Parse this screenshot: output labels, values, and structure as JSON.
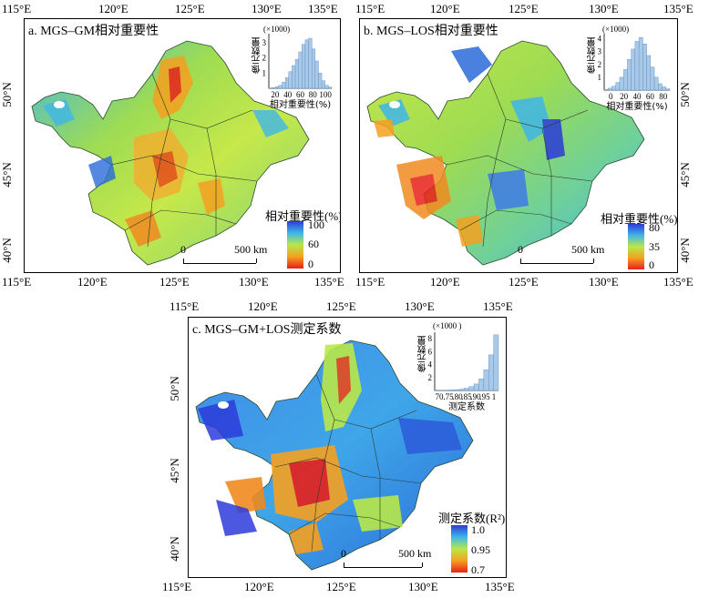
{
  "panels": {
    "a": {
      "title": "a. MGS–GM相对重要性",
      "x_ticks_top": [
        "115°E",
        "120°E",
        "125°E",
        "130°E",
        "135°E"
      ],
      "x_ticks_bottom": [
        "115°E",
        "120°E",
        "125°E",
        "130°E",
        "135°E"
      ],
      "y_ticks": [
        "50°N",
        "45°N",
        "40°N"
      ],
      "legend": {
        "title": "相对重要性(%)",
        "values": [
          "100",
          "60",
          "0"
        ]
      },
      "scale": {
        "left": "0",
        "right": "500 km"
      },
      "histogram": {
        "ylabel": "像元数量",
        "multiplier": "(×1000)",
        "y_ticks": [
          "1",
          "2",
          "3"
        ],
        "x_ticks": [
          "20",
          "40",
          "60",
          "80",
          "100"
        ],
        "xlabel": "相对重要性(%)",
        "bars": [
          0.02,
          0.05,
          0.1,
          0.2,
          0.4,
          0.7,
          1.1,
          1.5,
          1.9,
          2.4,
          2.9,
          3.2,
          3.3,
          2.6,
          1.8,
          1.0,
          0.5,
          0.2,
          0.08
        ],
        "xrange": [
          5,
          100
        ],
        "yrange": [
          0,
          3.6
        ],
        "bar_color": "#a9c9e8"
      }
    },
    "b": {
      "title": "b. MGS–LOS相对重要性",
      "x_ticks_top": [
        "115°E",
        "120°E",
        "125°E",
        "130°E",
        "135°E"
      ],
      "x_ticks_bottom": [
        "115°E",
        "120°E",
        "125°E",
        "130°E",
        "135°E"
      ],
      "y_ticks": [
        "50°N",
        "45°N",
        "40°N"
      ],
      "legend": {
        "title": "相对重要性(%)",
        "values": [
          "80",
          "35",
          "0"
        ]
      },
      "scale": {
        "left": "0",
        "right": "500 km"
      },
      "histogram": {
        "ylabel": "像元数量",
        "multiplier": "(×1000)",
        "y_ticks": [
          "1",
          "2",
          "3",
          "4"
        ],
        "x_ticks": [
          "0",
          "20",
          "40",
          "60",
          "80"
        ],
        "xlabel": "相对重要性(%)",
        "bars": [
          0.05,
          0.15,
          0.3,
          0.6,
          1.0,
          1.6,
          2.4,
          3.2,
          3.8,
          4.1,
          3.6,
          2.7,
          1.8,
          1.0,
          0.5,
          0.25,
          0.1
        ],
        "xrange": [
          0,
          80
        ],
        "yrange": [
          0,
          4.4
        ],
        "bar_color": "#a9c9e8"
      }
    },
    "c": {
      "title": "c. MGS–GM+LOS测定系数",
      "x_ticks_top": [
        "115°E",
        "120°E",
        "125°E",
        "130°E",
        "135°E"
      ],
      "x_ticks_bottom": [
        "115°E",
        "120°E",
        "125°E",
        "130°E",
        "135°E"
      ],
      "y_ticks": [
        "50°N",
        "45°N",
        "40°N"
      ],
      "legend": {
        "title": "测定系数(R²)",
        "values": [
          "1.0",
          "0.95",
          "0.7"
        ]
      },
      "scale": {
        "left": "0",
        "right": "500 km"
      },
      "histogram": {
        "ylabel": "像元数量",
        "multiplier": "(×1000 )",
        "y_ticks": [
          "2",
          "4",
          "6",
          "8"
        ],
        "x_ticks": [
          "70",
          ".75",
          ".80",
          ".85",
          ".90",
          ".95",
          "1"
        ],
        "xlabel": "测定系数",
        "bars": [
          0.02,
          0.03,
          0.05,
          0.08,
          0.12,
          0.2,
          0.35,
          0.6,
          1.0,
          1.8,
          3.2,
          5.5,
          8.6
        ],
        "xrange": [
          0.7,
          1.0
        ],
        "yrange": [
          0,
          9
        ],
        "bar_color": "#a9c9e8"
      }
    }
  },
  "colors": {
    "ramp_high": "#2b3bd9",
    "ramp_midhigh": "#3fb6e8",
    "ramp_mid": "#b8e84a",
    "ramp_midlow": "#f5a020",
    "ramp_low": "#e8201a"
  }
}
